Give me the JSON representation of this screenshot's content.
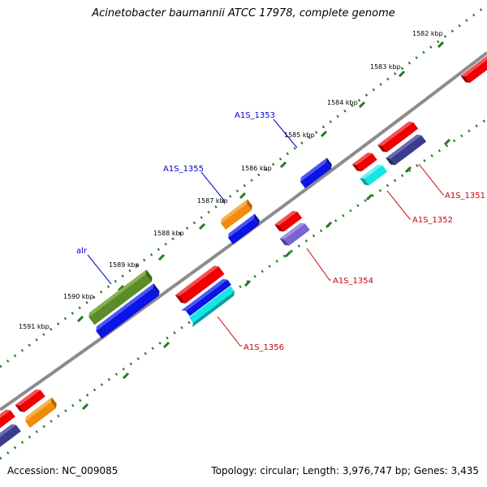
{
  "title": "Acinetobacter baumannii ATCC 17978, complete genome",
  "footer": {
    "accession": "Accession: NC_009085",
    "summary": "Topology: circular; Length: 3,976,747 bp; Genes: 3,435"
  },
  "colors": {
    "backbone": "#8c8c8c",
    "tick": "#1e7a1e",
    "forward_label": "#0000cc",
    "reverse_label": "#cc0000",
    "red": "#ee0000",
    "blue": "#0a14e6",
    "orange": "#f08c0a",
    "navy": "#3c3c8c",
    "cyan": "#14e6e6",
    "olive": "#5a8c28",
    "purple": "#7864d2"
  },
  "kbp_ticks": [
    "1582 kbp",
    "1583 kbp",
    "1584 kbp",
    "1585 kbp",
    "1586 kbp",
    "1587 kbp",
    "1588 kbp",
    "1589 kbp",
    "1590 kbp",
    "1591 kbp"
  ],
  "gene_labels": {
    "A1S_1353": "A1S_1353",
    "A1S_1355": "A1S_1355",
    "alr": "alr",
    "A1S_1351": "A1S_1351",
    "A1S_1352": "A1S_1352",
    "A1S_1354": "A1S_1354",
    "A1S_1356": "A1S_1356"
  }
}
